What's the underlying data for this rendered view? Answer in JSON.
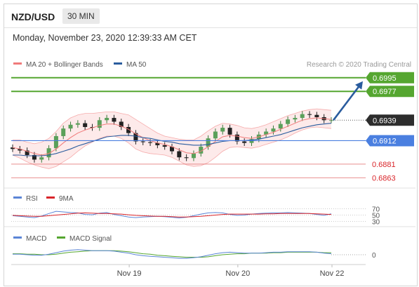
{
  "header": {
    "symbol": "NZD/USD",
    "timeframe": "30 MIN",
    "datetime": "Monday, November 23, 2020 12:39:33 AM CET",
    "credit": "Research © 2020 Trading Central"
  },
  "colors": {
    "bollinger": "#f07a7a",
    "ma50": "#2a5c9e",
    "target": "#55a630",
    "pivot": "#4a7fe0",
    "support": "#e06060",
    "last": "#2d2d2d",
    "arrow": "#2a5c9e",
    "rsi": "#5b85d6",
    "rsi_ma": "#d9252a",
    "macd": "#5b85d6",
    "macd_signal": "#55a630"
  },
  "legend": {
    "ma_bb": "MA 20 + Bollinger Bands",
    "ma50": "MA 50",
    "rsi": "RSI",
    "rsi_ma": "9MA",
    "macd": "MACD",
    "macd_signal": "MACD Signal"
  },
  "chart_data": [
    {
      "type": "candlestick",
      "title": "NZD/USD 30 MIN",
      "x_ticks": [
        "Nov 19",
        "Nov 20",
        "Nov 22"
      ],
      "ylim": [
        0.6855,
        0.7005
      ],
      "levels": [
        {
          "value": 0.6995,
          "label": "0.6995",
          "kind": "resistance",
          "color": "#55a630"
        },
        {
          "value": 0.6977,
          "label": "0.6977",
          "kind": "resistance",
          "color": "#55a630"
        },
        {
          "value": 0.6939,
          "label": "0.6939",
          "kind": "last",
          "color": "#2d2d2d"
        },
        {
          "value": 0.6912,
          "label": "0.6912",
          "kind": "pivot",
          "color": "#4a7fe0"
        },
        {
          "value": 0.6881,
          "label": "0.6881",
          "kind": "support",
          "color": "#e06060"
        },
        {
          "value": 0.6863,
          "label": "0.6863",
          "kind": "support",
          "color": "#e06060"
        }
      ],
      "series": [
        {
          "name": "Close",
          "values": [
            0.6901,
            0.6899,
            0.6893,
            0.6887,
            0.689,
            0.6902,
            0.6918,
            0.6928,
            0.6933,
            0.6935,
            0.693,
            0.6929,
            0.6939,
            0.6942,
            0.6937,
            0.693,
            0.6922,
            0.6911,
            0.691,
            0.6909,
            0.6906,
            0.6904,
            0.6898,
            0.689,
            0.6889,
            0.6895,
            0.6904,
            0.6915,
            0.6924,
            0.6929,
            0.692,
            0.6911,
            0.6909,
            0.6914,
            0.692,
            0.6924,
            0.6928,
            0.6934,
            0.694,
            0.6942,
            0.6947,
            0.6946,
            0.6943,
            0.6939,
            0.6939
          ]
        },
        {
          "name": "MA 20",
          "values": [
            0.6903,
            0.6901,
            0.6898,
            0.6895,
            0.6893,
            0.6895,
            0.6901,
            0.6909,
            0.6916,
            0.6922,
            0.6926,
            0.6929,
            0.6932,
            0.6934,
            0.6934,
            0.6931,
            0.6927,
            0.6921,
            0.6916,
            0.6912,
            0.6909,
            0.6907,
            0.6904,
            0.69,
            0.6896,
            0.6895,
            0.6898,
            0.6904,
            0.6911,
            0.6917,
            0.6919,
            0.6918,
            0.6916,
            0.6915,
            0.6917,
            0.692,
            0.6923,
            0.6927,
            0.6931,
            0.6935,
            0.6939,
            0.6941,
            0.6942,
            0.6941,
            0.694
          ]
        },
        {
          "name": "MA 50",
          "values": [
            0.6893,
            0.6893,
            0.6892,
            0.6892,
            0.6892,
            0.6893,
            0.6895,
            0.6898,
            0.6901,
            0.6905,
            0.6908,
            0.6911,
            0.6914,
            0.6917,
            0.6918,
            0.6919,
            0.6919,
            0.6918,
            0.6916,
            0.6915,
            0.6913,
            0.6911,
            0.691,
            0.6908,
            0.6907,
            0.6906,
            0.6906,
            0.6907,
            0.6909,
            0.6911,
            0.6912,
            0.6912,
            0.6912,
            0.6913,
            0.6914,
            0.6916,
            0.6918,
            0.692,
            0.6923,
            0.6926,
            0.6929,
            0.6931,
            0.6933,
            0.6934,
            0.6935
          ]
        },
        {
          "name": "BB upper",
          "values": [
            0.6913,
            0.6913,
            0.691,
            0.6908,
            0.691,
            0.6915,
            0.6924,
            0.6935,
            0.6942,
            0.6946,
            0.6948,
            0.6948,
            0.6949,
            0.695,
            0.695,
            0.6948,
            0.6946,
            0.694,
            0.6934,
            0.6928,
            0.6922,
            0.6918,
            0.6916,
            0.6914,
            0.6913,
            0.6913,
            0.6918,
            0.6925,
            0.6931,
            0.6935,
            0.6934,
            0.6932,
            0.6929,
            0.6928,
            0.693,
            0.6933,
            0.6937,
            0.6941,
            0.6945,
            0.6948,
            0.6951,
            0.6953,
            0.6954,
            0.6953,
            0.6952
          ]
        },
        {
          "name": "BB lower",
          "values": [
            0.6893,
            0.6889,
            0.6884,
            0.688,
            0.6877,
            0.6875,
            0.6878,
            0.6884,
            0.689,
            0.6898,
            0.6905,
            0.691,
            0.6915,
            0.6918,
            0.6918,
            0.6915,
            0.6909,
            0.6901,
            0.6897,
            0.6895,
            0.6894,
            0.6893,
            0.689,
            0.6885,
            0.688,
            0.6878,
            0.6879,
            0.6883,
            0.689,
            0.6898,
            0.6903,
            0.6904,
            0.6903,
            0.6902,
            0.6904,
            0.6907,
            0.691,
            0.6913,
            0.6917,
            0.6922,
            0.6926,
            0.6929,
            0.693,
            0.6929,
            0.6928
          ]
        }
      ]
    },
    {
      "type": "line",
      "title": "RSI",
      "ylim": [
        20,
        80
      ],
      "y_ticks": [
        30,
        50,
        70
      ],
      "series": [
        {
          "name": "RSI",
          "values": [
            48,
            46,
            44,
            42,
            47,
            55,
            62,
            60,
            58,
            57,
            52,
            51,
            56,
            58,
            52,
            48,
            44,
            42,
            44,
            45,
            46,
            45,
            43,
            41,
            43,
            48,
            53,
            57,
            58,
            57,
            52,
            49,
            50,
            53,
            55,
            56,
            57,
            57,
            58,
            57,
            56,
            55,
            52,
            49,
            54
          ]
        },
        {
          "name": "9MA",
          "values": [
            49,
            48,
            47,
            46,
            46,
            48,
            50,
            52,
            54,
            56,
            57,
            56,
            55,
            55,
            54,
            53,
            51,
            49,
            48,
            47,
            46,
            46,
            45,
            44,
            44,
            45,
            46,
            48,
            50,
            52,
            53,
            53,
            53,
            53,
            53,
            54,
            54,
            55,
            55,
            55,
            55,
            55,
            54,
            53,
            52
          ]
        }
      ]
    },
    {
      "type": "line",
      "title": "MACD",
      "ylim": [
        -0.0018,
        0.0018
      ],
      "y_ticks": [
        0
      ],
      "series": [
        {
          "name": "MACD",
          "values": [
            0.0001,
            0.0001,
            0.0,
            -0.0001,
            -0.0001,
            0.0001,
            0.0004,
            0.0007,
            0.0009,
            0.001,
            0.0009,
            0.0008,
            0.0008,
            0.0008,
            0.0007,
            0.0005,
            0.0003,
            0.0,
            -0.0002,
            -0.0003,
            -0.0004,
            -0.0005,
            -0.0006,
            -0.0007,
            -0.0007,
            -0.0006,
            -0.0004,
            -0.0001,
            0.0002,
            0.0004,
            0.0005,
            0.0004,
            0.0003,
            0.0003,
            0.0003,
            0.0004,
            0.0005,
            0.0005,
            0.0006,
            0.0006,
            0.0006,
            0.0006,
            0.0005,
            0.0003,
            0.0002
          ]
        },
        {
          "name": "MACD Signal",
          "values": [
            0.0002,
            0.0002,
            0.0001,
            0.0001,
            0.0,
            0.0,
            0.0001,
            0.0003,
            0.0005,
            0.0006,
            0.0007,
            0.0008,
            0.0008,
            0.0008,
            0.0008,
            0.0007,
            0.0006,
            0.0004,
            0.0002,
            0.0001,
            -0.0001,
            -0.0002,
            -0.0003,
            -0.0004,
            -0.0005,
            -0.0005,
            -0.0005,
            -0.0004,
            -0.0002,
            0.0,
            0.0001,
            0.0002,
            0.0002,
            0.0003,
            0.0003,
            0.0003,
            0.0004,
            0.0004,
            0.0005,
            0.0005,
            0.0005,
            0.0005,
            0.0005,
            0.0004,
            0.0004
          ]
        }
      ]
    }
  ]
}
